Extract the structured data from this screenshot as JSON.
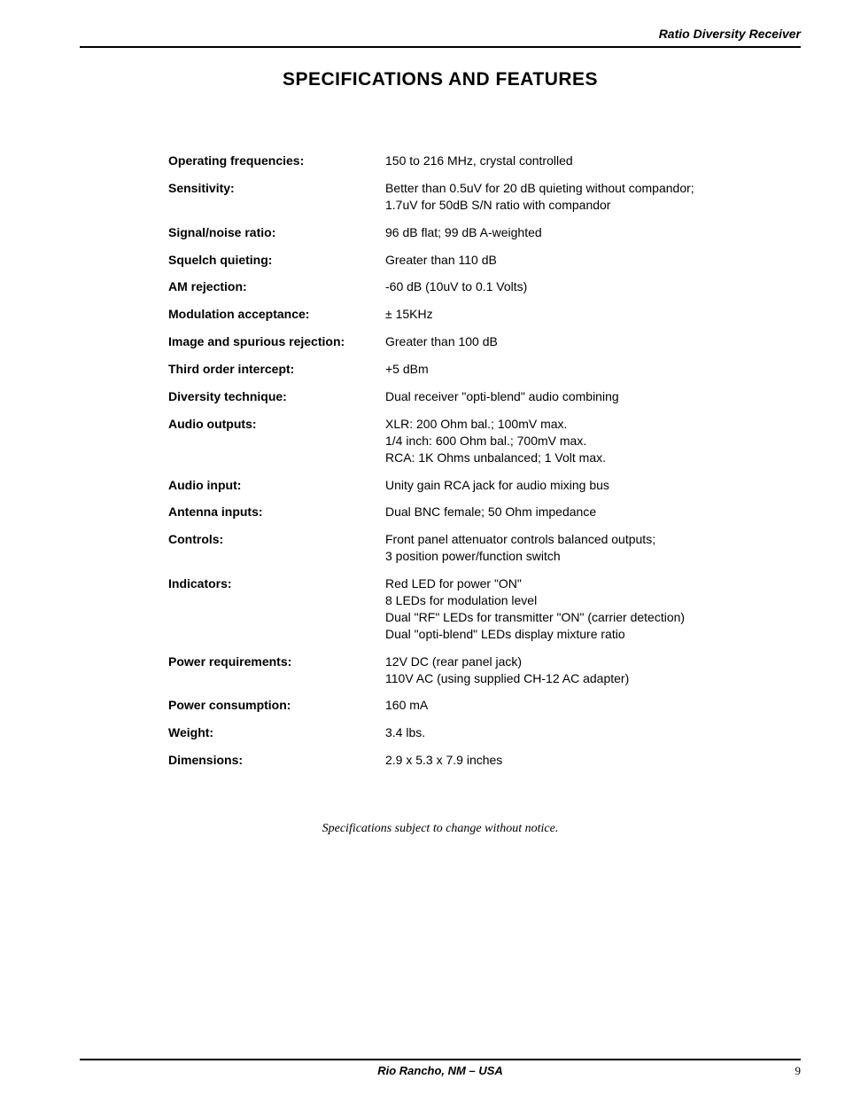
{
  "header": {
    "product_name": "Ratio Diversity Receiver"
  },
  "title": "SPECIFICATIONS AND FEATURES",
  "specs": [
    {
      "label": "Operating frequencies:",
      "value": "150 to 216 MHz, crystal controlled"
    },
    {
      "label": "Sensitivity:",
      "value": "Better than 0.5uV for 20 dB quieting without compandor;\n1.7uV for 50dB S/N ratio with compandor"
    },
    {
      "label": "Signal/noise ratio:",
      "value": "96 dB flat; 99 dB A-weighted"
    },
    {
      "label": "Squelch quieting:",
      "value": "Greater than 110 dB"
    },
    {
      "label": "AM rejection:",
      "value": "-60 dB (10uV to 0.1 Volts)"
    },
    {
      "label": "Modulation acceptance:",
      "value": "± 15KHz"
    },
    {
      "label": "Image and spurious rejection:",
      "value": "Greater than 100 dB"
    },
    {
      "label": "Third order intercept:",
      "value": "+5 dBm"
    },
    {
      "label": "Diversity technique:",
      "value": "Dual receiver \"opti-blend\" audio combining"
    },
    {
      "label": "Audio outputs:",
      "value": "XLR: 200 Ohm bal.; 100mV max.\n1/4 inch: 600 Ohm bal.; 700mV max.\nRCA: 1K Ohms unbalanced; 1 Volt max."
    },
    {
      "label": "Audio input:",
      "value": "Unity gain RCA jack for audio mixing bus"
    },
    {
      "label": "Antenna inputs:",
      "value": "Dual BNC female; 50 Ohm impedance"
    },
    {
      "label": "Controls:",
      "value": "Front panel attenuator controls balanced outputs;\n3 position power/function switch"
    },
    {
      "label": "Indicators:",
      "value": "Red LED for power \"ON\"\n8 LEDs for modulation level\nDual \"RF\" LEDs for transmitter \"ON\" (carrier detection)\nDual \"opti-blend\" LEDs display mixture ratio"
    },
    {
      "label": "Power requirements:",
      "value": "12V DC (rear panel jack)\n110V AC (using supplied CH-12 AC adapter)"
    },
    {
      "label": "Power consumption:",
      "value": "160 mA"
    },
    {
      "label": "Weight:",
      "value": "3.4 lbs."
    },
    {
      "label": "Dimensions:",
      "value": "2.9 x 5.3 x 7.9 inches"
    }
  ],
  "footnote": "Specifications subject to change without notice.",
  "footer": {
    "location": "Rio Rancho, NM – USA",
    "page_number": "9"
  }
}
